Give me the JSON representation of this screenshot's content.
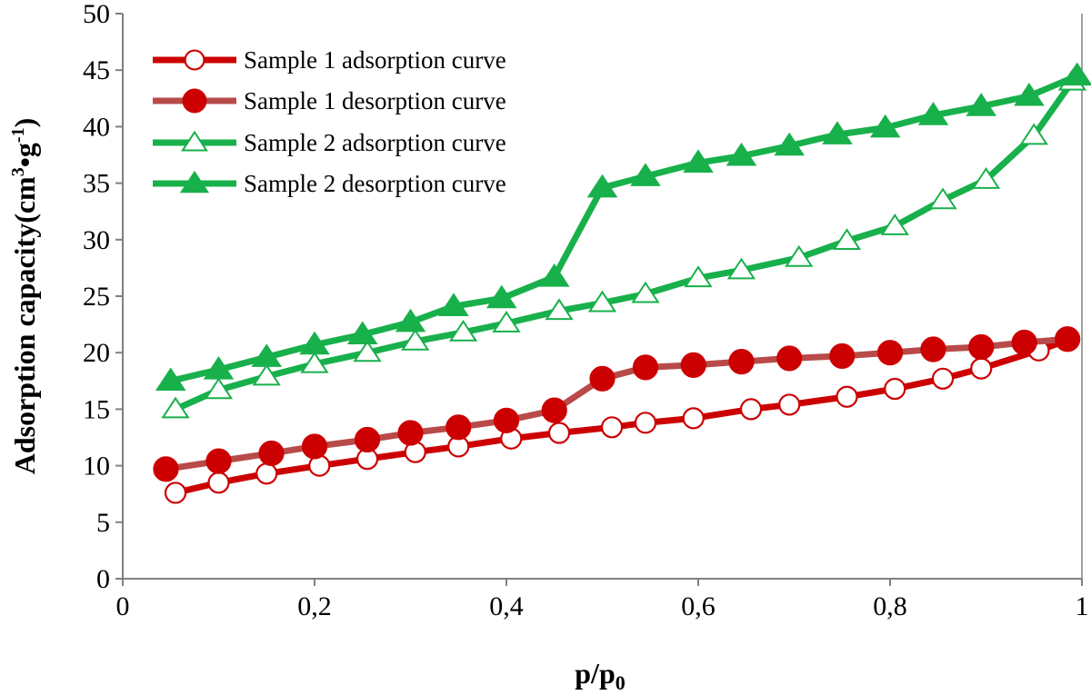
{
  "chart_data": {
    "type": "line",
    "xlabel": "p/p",
    "xlabel_sub": "0",
    "ylabel_parts": [
      "Adsorption capacity(cm",
      "3",
      "•g",
      "-1",
      ")"
    ],
    "xlim": [
      0,
      1
    ],
    "ylim": [
      0,
      50
    ],
    "x_ticks": [
      0,
      0.2,
      0.4,
      0.6,
      0.8,
      1
    ],
    "x_tick_labels": [
      "0",
      "0,2",
      "0,4",
      "0,6",
      "0,8",
      "1"
    ],
    "y_ticks": [
      0,
      5,
      10,
      15,
      20,
      25,
      30,
      35,
      40,
      45,
      50
    ],
    "y_tick_labels": [
      "0",
      "5",
      "10",
      "15",
      "20",
      "25",
      "30",
      "35",
      "40",
      "45",
      "50"
    ],
    "grid": false,
    "legend_position": "top-left",
    "series": [
      {
        "name": "Sample 1 adsorption curve",
        "color": "#cc0000",
        "marker": "circle",
        "filled": false,
        "x": [
          0.055,
          0.1,
          0.15,
          0.205,
          0.255,
          0.305,
          0.35,
          0.405,
          0.455,
          0.51,
          0.545,
          0.595,
          0.655,
          0.695,
          0.755,
          0.805,
          0.855,
          0.895,
          0.955,
          0.985
        ],
        "y": [
          7.6,
          8.5,
          9.3,
          10.0,
          10.6,
          11.2,
          11.7,
          12.4,
          12.9,
          13.4,
          13.8,
          14.2,
          15.0,
          15.4,
          16.1,
          16.8,
          17.7,
          18.6,
          20.2,
          21.1
        ]
      },
      {
        "name": "Sample 1 desorption curve",
        "color": "#cc0000",
        "line_color": "#b94a4a",
        "marker": "circle",
        "filled": true,
        "x": [
          0.045,
          0.1,
          0.155,
          0.2,
          0.255,
          0.3,
          0.35,
          0.4,
          0.45,
          0.5,
          0.545,
          0.595,
          0.645,
          0.695,
          0.75,
          0.8,
          0.845,
          0.895,
          0.94,
          0.985
        ],
        "y": [
          9.7,
          10.4,
          11.1,
          11.7,
          12.3,
          12.9,
          13.4,
          14.0,
          14.9,
          17.7,
          18.7,
          18.9,
          19.2,
          19.5,
          19.7,
          20.0,
          20.3,
          20.5,
          20.9,
          21.2
        ]
      },
      {
        "name": "Sample 2 adsorption curve",
        "color": "#18b04b",
        "marker": "triangle",
        "filled": false,
        "x": [
          0.055,
          0.1,
          0.15,
          0.2,
          0.255,
          0.305,
          0.355,
          0.4,
          0.455,
          0.5,
          0.545,
          0.6,
          0.645,
          0.705,
          0.755,
          0.805,
          0.855,
          0.9,
          0.95,
          0.99
        ],
        "y": [
          15.0,
          16.7,
          17.9,
          19.0,
          20.0,
          21.0,
          21.8,
          22.6,
          23.7,
          24.4,
          25.2,
          26.6,
          27.3,
          28.4,
          29.9,
          31.2,
          33.5,
          35.3,
          39.2,
          44.0
        ]
      },
      {
        "name": "Sample 2 desorption curve",
        "color": "#18b04b",
        "marker": "triangle",
        "filled": true,
        "x": [
          0.05,
          0.1,
          0.15,
          0.2,
          0.25,
          0.3,
          0.345,
          0.395,
          0.45,
          0.5,
          0.545,
          0.6,
          0.645,
          0.695,
          0.745,
          0.795,
          0.845,
          0.895,
          0.945,
          0.995
        ],
        "y": [
          17.5,
          18.5,
          19.6,
          20.7,
          21.6,
          22.7,
          24.1,
          24.8,
          26.7,
          34.6,
          35.6,
          36.8,
          37.4,
          38.3,
          39.3,
          39.9,
          41.0,
          41.8,
          42.7,
          44.5
        ]
      }
    ]
  }
}
